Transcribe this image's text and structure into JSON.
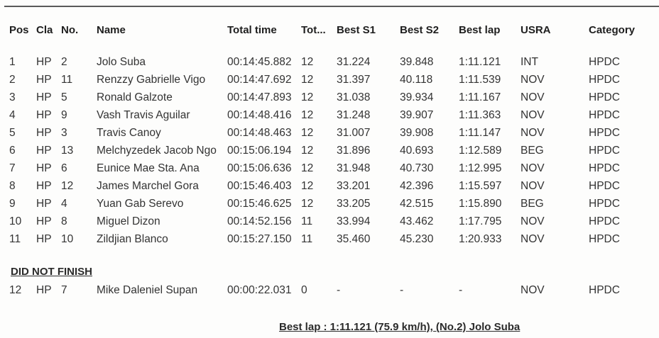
{
  "headers": {
    "pos": "Pos",
    "cla": "Cla",
    "no": "No.",
    "name": "Name",
    "total_time": "Total time",
    "laps": "Tot...",
    "best_s1": "Best S1",
    "best_s2": "Best S2",
    "best_lap": "Best lap",
    "usra": "USRA",
    "category": "Category"
  },
  "results": [
    {
      "pos": "1",
      "cla": "HP",
      "no": "2",
      "name": "Jolo Suba",
      "total": "00:14:45.882",
      "laps": "12",
      "s1": "31.224",
      "s2": "39.848",
      "best": "1:11.121",
      "usra": "INT",
      "cat": "HPDC"
    },
    {
      "pos": "2",
      "cla": "HP",
      "no": "11",
      "name": "Renzzy Gabrielle Vigo",
      "total": "00:14:47.692",
      "laps": "12",
      "s1": "31.397",
      "s2": "40.118",
      "best": "1:11.539",
      "usra": "NOV",
      "cat": "HPDC"
    },
    {
      "pos": "3",
      "cla": "HP",
      "no": "5",
      "name": "Ronald Galzote",
      "total": "00:14:47.893",
      "laps": "12",
      "s1": "31.038",
      "s2": "39.934",
      "best": "1:11.167",
      "usra": "NOV",
      "cat": "HPDC"
    },
    {
      "pos": "4",
      "cla": "HP",
      "no": "9",
      "name": "Vash Travis Aguilar",
      "total": "00:14:48.416",
      "laps": "12",
      "s1": "31.248",
      "s2": "39.907",
      "best": "1:11.363",
      "usra": "NOV",
      "cat": "HPDC"
    },
    {
      "pos": "5",
      "cla": "HP",
      "no": "3",
      "name": "Travis Canoy",
      "total": "00:14:48.463",
      "laps": "12",
      "s1": "31.007",
      "s2": "39.908",
      "best": "1:11.147",
      "usra": "NOV",
      "cat": "HPDC"
    },
    {
      "pos": "6",
      "cla": "HP",
      "no": "13",
      "name": "Melchyzedek Jacob Ngo",
      "total": "00:15:06.194",
      "laps": "12",
      "s1": "31.896",
      "s2": "40.693",
      "best": "1:12.589",
      "usra": "BEG",
      "cat": "HPDC"
    },
    {
      "pos": "7",
      "cla": "HP",
      "no": "6",
      "name": "Eunice Mae Sta. Ana",
      "total": "00:15:06.636",
      "laps": "12",
      "s1": "31.948",
      "s2": "40.730",
      "best": "1:12.995",
      "usra": "NOV",
      "cat": "HPDC"
    },
    {
      "pos": "8",
      "cla": "HP",
      "no": "12",
      "name": "James Marchel Gora",
      "total": "00:15:46.403",
      "laps": "12",
      "s1": "33.201",
      "s2": "42.396",
      "best": "1:15.597",
      "usra": "NOV",
      "cat": "HPDC"
    },
    {
      "pos": "9",
      "cla": "HP",
      "no": "4",
      "name": "Yuan Gab Serevo",
      "total": "00:15:46.625",
      "laps": "12",
      "s1": "33.205",
      "s2": "42.515",
      "best": "1:15.890",
      "usra": "BEG",
      "cat": "HPDC"
    },
    {
      "pos": "10",
      "cla": "HP",
      "no": "8",
      "name": "Miguel Dizon",
      "total": "00:14:52.156",
      "laps": "11",
      "s1": "33.994",
      "s2": "43.462",
      "best": "1:17.795",
      "usra": "NOV",
      "cat": "HPDC"
    },
    {
      "pos": "11",
      "cla": "HP",
      "no": "10",
      "name": "Zildjian Blanco",
      "total": "00:15:27.150",
      "laps": "11",
      "s1": "35.460",
      "s2": "45.230",
      "best": "1:20.933",
      "usra": "NOV",
      "cat": "HPDC"
    }
  ],
  "dnf": {
    "title": "DID NOT FINISH",
    "rows": [
      {
        "pos": "12",
        "cla": "HP",
        "no": "7",
        "name": "Mike Daleniel Supan",
        "total": "00:00:22.031",
        "laps": "0",
        "s1": "-",
        "s2": "-",
        "best": "-",
        "usra": "NOV",
        "cat": "HPDC"
      }
    ]
  },
  "footer": {
    "best_lap_note": "Best lap : 1:11.121 (75.9 km/h), (No.2) Jolo Suba"
  }
}
